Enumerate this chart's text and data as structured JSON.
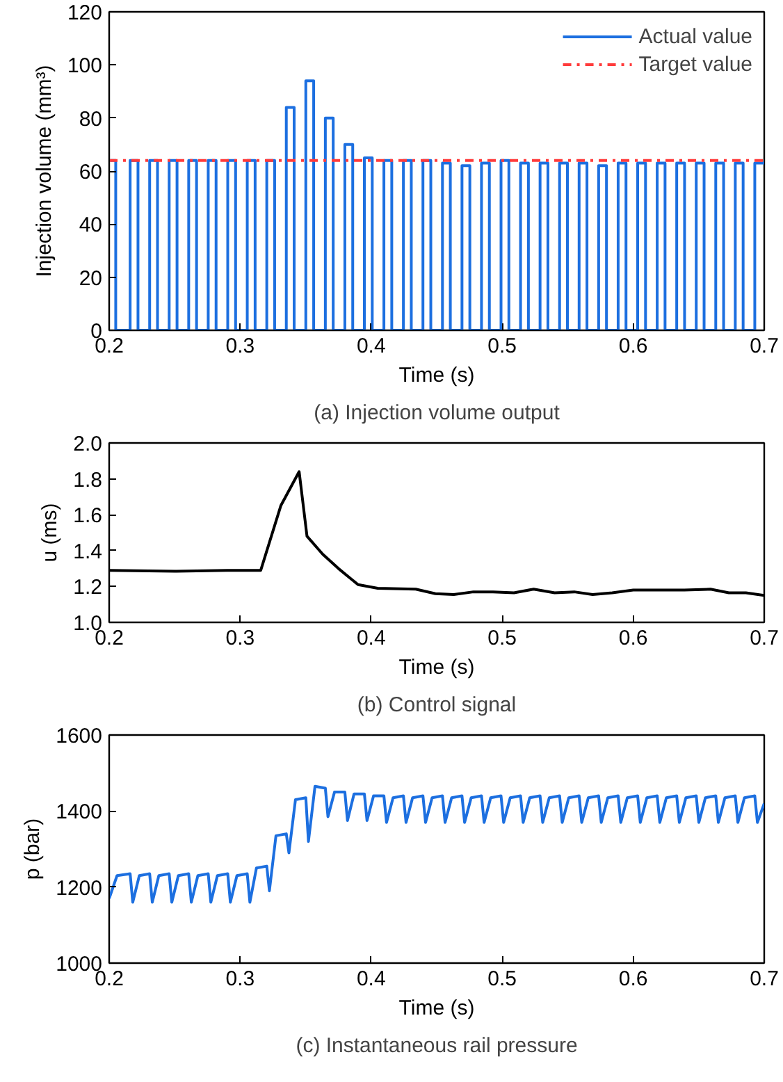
{
  "chart_data": [
    {
      "type": "step",
      "title": "(a) Injection volume output",
      "xlabel": "Time (s)",
      "ylabel": "Injection volume (mm³)",
      "xlim": [
        0.2,
        0.7
      ],
      "xticks": [
        0.2,
        0.3,
        0.4,
        0.5,
        0.6,
        0.7
      ],
      "ylim": [
        0,
        120
      ],
      "yticks": [
        0,
        20,
        40,
        60,
        80,
        100,
        120
      ],
      "grid": false,
      "legend": "top right",
      "series": [
        {
          "name": "Actual value",
          "color": "#1c6fe0",
          "x": [
            0.2,
            0.205,
            0.216,
            0.222,
            0.2309,
            0.2369,
            0.2458,
            0.2518,
            0.2607,
            0.2667,
            0.2756,
            0.2816,
            0.2905,
            0.2965,
            0.3054,
            0.3114,
            0.3203,
            0.3263,
            0.3352,
            0.3412,
            0.3501,
            0.3561,
            0.365,
            0.371,
            0.3799,
            0.3859,
            0.3948,
            0.4008,
            0.4097,
            0.4157,
            0.4246,
            0.4306,
            0.4395,
            0.4455,
            0.4544,
            0.4604,
            0.4693,
            0.4753,
            0.4842,
            0.4902,
            0.4991,
            0.5051,
            0.514,
            0.52,
            0.5289,
            0.5349,
            0.5438,
            0.5498,
            0.5587,
            0.5647,
            0.5736,
            0.5796,
            0.5885,
            0.5945,
            0.6034,
            0.6094,
            0.6183,
            0.6243,
            0.6332,
            0.6392,
            0.6481,
            0.6541,
            0.663,
            0.669,
            0.6779,
            0.6839,
            0.6928,
            0.7
          ],
          "values": [
            64,
            0,
            64,
            0,
            64,
            0,
            64,
            0,
            64,
            0,
            64,
            0,
            64,
            0,
            64,
            0,
            64,
            0,
            84,
            0,
            94,
            0,
            80,
            0,
            70,
            0,
            65,
            0,
            64,
            0,
            64,
            0,
            64,
            0,
            63,
            0,
            62,
            0,
            63,
            0,
            64,
            0,
            63,
            0,
            63,
            0,
            63,
            0,
            63,
            0,
            62,
            0,
            63,
            0,
            63,
            0,
            63,
            0,
            63,
            0,
            63,
            0,
            63,
            0,
            63,
            0,
            63,
            63
          ]
        },
        {
          "name": "Target value",
          "type": "line",
          "line_style": "dashdot",
          "color": "#ff3b3b",
          "x": [
            0.2,
            0.7
          ],
          "values": [
            64,
            64
          ]
        }
      ]
    },
    {
      "type": "line",
      "title": "(b) Control signal",
      "xlabel": "Time (s)",
      "ylabel": "u (ms)",
      "xlim": [
        0.2,
        0.7
      ],
      "xticks": [
        0.2,
        0.3,
        0.4,
        0.5,
        0.6,
        0.7
      ],
      "ylim": [
        1.0,
        2.0
      ],
      "yticks": [
        {
          "value": 1.0,
          "label": "1.0"
        },
        1.2,
        1.4,
        1.6,
        1.8,
        {
          "value": 2.0,
          "label": "2.0"
        }
      ],
      "grid": false,
      "series": [
        {
          "color": "#000000",
          "x": [
            0.2,
            0.25,
            0.29,
            0.3157,
            0.331,
            0.345,
            0.351,
            0.363,
            0.375,
            0.39,
            0.405,
            0.434,
            0.449,
            0.463,
            0.478,
            0.493,
            0.509,
            0.524,
            0.54,
            0.555,
            0.569,
            0.584,
            0.6,
            0.624,
            0.639,
            0.659,
            0.673,
            0.686,
            0.7
          ],
          "values": [
            1.29,
            1.285,
            1.29,
            1.29,
            1.65,
            1.84,
            1.48,
            1.38,
            1.3,
            1.21,
            1.19,
            1.185,
            1.16,
            1.155,
            1.17,
            1.17,
            1.165,
            1.185,
            1.165,
            1.17,
            1.155,
            1.165,
            1.18,
            1.18,
            1.18,
            1.185,
            1.165,
            1.165,
            1.15
          ]
        }
      ]
    },
    {
      "type": "line",
      "title": "(c) Instantaneous rail pressure",
      "xlabel": "Time (s)",
      "ylabel": "p (bar)",
      "xlim": [
        0.2,
        0.7
      ],
      "xticks": [
        0.2,
        0.3,
        0.4,
        0.5,
        0.6,
        0.7
      ],
      "ylim": [
        1000,
        1600
      ],
      "yticks": [
        1000,
        1200,
        1400,
        1600
      ],
      "grid": false,
      "series": [
        {
          "color": "#1c6fe0",
          "x": [
            0.2,
            0.206,
            0.216,
            0.218,
            0.223,
            0.2309,
            0.2329,
            0.2379,
            0.2458,
            0.2478,
            0.2528,
            0.2607,
            0.2627,
            0.2677,
            0.2756,
            0.2776,
            0.2826,
            0.2905,
            0.2925,
            0.2975,
            0.3054,
            0.3074,
            0.3124,
            0.3203,
            0.3223,
            0.3273,
            0.3352,
            0.3372,
            0.3422,
            0.3501,
            0.3521,
            0.3571,
            0.365,
            0.367,
            0.372,
            0.3799,
            0.3819,
            0.3869,
            0.3948,
            0.3968,
            0.4018,
            0.4097,
            0.4117,
            0.4167,
            0.4246,
            0.4266,
            0.4316,
            0.4395,
            0.4415,
            0.4465,
            0.4544,
            0.4564,
            0.4614,
            0.4693,
            0.4713,
            0.4763,
            0.4842,
            0.4862,
            0.4912,
            0.4991,
            0.5011,
            0.5061,
            0.514,
            0.516,
            0.521,
            0.5289,
            0.5309,
            0.5359,
            0.5438,
            0.5458,
            0.5508,
            0.5587,
            0.5607,
            0.5657,
            0.5736,
            0.5756,
            0.5806,
            0.5885,
            0.5905,
            0.5955,
            0.6034,
            0.6054,
            0.6104,
            0.6183,
            0.6203,
            0.6253,
            0.6332,
            0.6352,
            0.6402,
            0.6481,
            0.6501,
            0.6551,
            0.663,
            0.665,
            0.67,
            0.6779,
            0.6799,
            0.6849,
            0.6928,
            0.6948,
            0.7
          ],
          "values": [
            1170,
            1230,
            1235,
            1160,
            1230,
            1235,
            1160,
            1230,
            1235,
            1160,
            1230,
            1235,
            1160,
            1230,
            1235,
            1160,
            1230,
            1235,
            1160,
            1230,
            1235,
            1160,
            1250,
            1255,
            1190,
            1335,
            1340,
            1290,
            1430,
            1435,
            1320,
            1465,
            1460,
            1385,
            1450,
            1450,
            1375,
            1445,
            1445,
            1375,
            1440,
            1440,
            1370,
            1435,
            1440,
            1370,
            1435,
            1440,
            1370,
            1435,
            1440,
            1370,
            1435,
            1440,
            1370,
            1435,
            1440,
            1370,
            1435,
            1440,
            1370,
            1435,
            1440,
            1370,
            1435,
            1440,
            1370,
            1435,
            1440,
            1370,
            1435,
            1440,
            1370,
            1435,
            1440,
            1370,
            1435,
            1440,
            1370,
            1435,
            1440,
            1370,
            1435,
            1440,
            1370,
            1435,
            1440,
            1370,
            1435,
            1440,
            1370,
            1435,
            1440,
            1370,
            1435,
            1440,
            1370,
            1435,
            1440,
            1370,
            1420
          ]
        }
      ]
    }
  ]
}
